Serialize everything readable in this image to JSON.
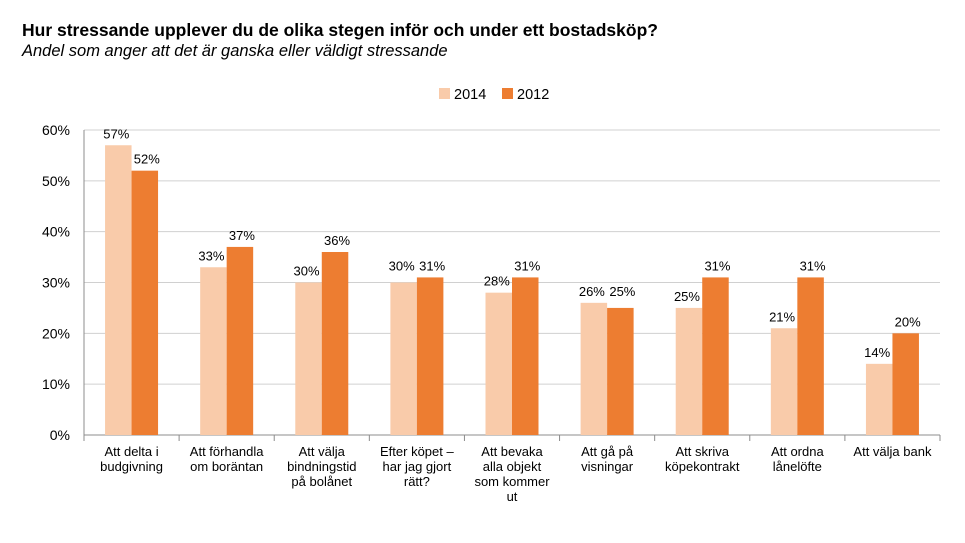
{
  "title": "Hur stressande upplever du de olika stegen inför och under ett bostadsköp?",
  "subtitle": "Andel som anger att det är ganska eller väldigt stressande",
  "chart_data": {
    "type": "bar",
    "title": "Hur stressande upplever du de olika stegen inför och under ett bostadsköp?",
    "subtitle": "Andel som anger att det är ganska eller väldigt stressande",
    "categories": [
      [
        "Att delta i",
        "budgivning"
      ],
      [
        "Att förhandla",
        "om boräntan"
      ],
      [
        "Att välja",
        "bindningstid",
        "på bolånet"
      ],
      [
        "Efter köpet –",
        "har jag gjort",
        "rätt?"
      ],
      [
        "Att bevaka",
        "alla objekt",
        "som kommer",
        "ut"
      ],
      [
        "Att gå på",
        "visningar"
      ],
      [
        "Att skriva",
        "köpekontrakt"
      ],
      [
        "Att ordna",
        "lånelöfte"
      ],
      [
        "Att välja bank"
      ]
    ],
    "series": [
      {
        "name": "2014",
        "color": "#F9CBAA",
        "values": [
          57,
          33,
          30,
          30,
          28,
          26,
          25,
          21,
          14
        ],
        "labels": [
          "57%",
          "33%",
          "30%",
          "30%",
          "28%",
          "26%",
          "25%",
          "21%",
          "14%"
        ]
      },
      {
        "name": "2012",
        "color": "#ED7D31",
        "values": [
          52,
          37,
          36,
          31,
          31,
          25,
          31,
          31,
          20
        ],
        "labels": [
          "52%",
          "37%",
          "36%",
          "31%",
          "31%",
          "25%",
          "31%",
          "31%",
          "20%"
        ]
      }
    ],
    "ylim": [
      0,
      60
    ],
    "yticks": [
      "0%",
      "10%",
      "20%",
      "30%",
      "40%",
      "50%",
      "60%"
    ],
    "legend_position": "top-center",
    "grid": true
  }
}
